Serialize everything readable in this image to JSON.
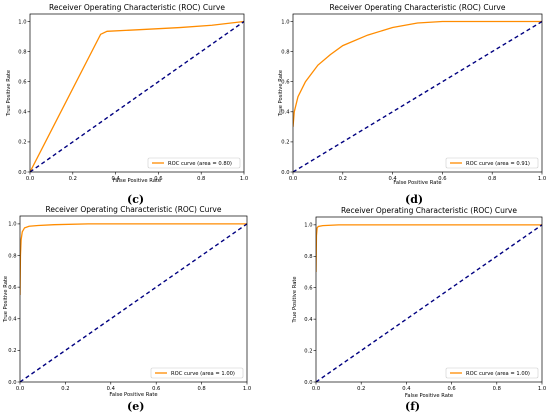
{
  "chart_data": [
    {
      "panel": "c",
      "type": "line",
      "title": "Receiver Operating Characteristic (ROC) Curve",
      "xlabel": "False Positive Rate",
      "ylabel": "True Positive Rate",
      "xlim": [
        0,
        1
      ],
      "ylim": [
        0,
        1.05
      ],
      "xticks": [
        "0.0",
        "0.2",
        "0.4",
        "0.6",
        "0.8",
        "1.0"
      ],
      "yticks": [
        "0.0",
        "0.2",
        "0.4",
        "0.6",
        "0.8",
        "1.0"
      ],
      "legend_position": "lower-right",
      "caption": "(c)",
      "series": [
        {
          "name": "ROC curve (area = 0.80)",
          "color": "#ff8c00",
          "style": "solid",
          "x": [
            0,
            0.33,
            0.36,
            0.5,
            0.7,
            0.85,
            1.0
          ],
          "y": [
            0,
            0.915,
            0.935,
            0.945,
            0.96,
            0.975,
            1.0
          ]
        },
        {
          "name": "",
          "color": "#000080",
          "style": "dashed",
          "x": [
            0,
            1
          ],
          "y": [
            0,
            1
          ]
        }
      ]
    },
    {
      "panel": "d",
      "type": "line",
      "title": "Receiver Operating Characteristic (ROC) Curve",
      "xlabel": "False Positive Rate",
      "ylabel": "True Positive Rate",
      "xlim": [
        0,
        1
      ],
      "ylim": [
        0,
        1.05
      ],
      "xticks": [
        "0.0",
        "0.2",
        "0.4",
        "0.6",
        "0.8",
        "1.0"
      ],
      "yticks": [
        "0.0",
        "0.2",
        "0.4",
        "0.6",
        "0.8",
        "1.0"
      ],
      "legend_position": "lower-right",
      "caption": "(d)",
      "series": [
        {
          "name": "ROC curve (area = 0.91)",
          "color": "#ff8c00",
          "style": "solid",
          "x": [
            0,
            0.005,
            0.02,
            0.05,
            0.1,
            0.15,
            0.2,
            0.3,
            0.4,
            0.5,
            0.6,
            0.7,
            0.8,
            1.0
          ],
          "y": [
            0.3,
            0.4,
            0.5,
            0.6,
            0.71,
            0.78,
            0.84,
            0.91,
            0.96,
            0.99,
            1.0,
            1.0,
            1.0,
            1.0
          ]
        },
        {
          "name": "",
          "color": "#000080",
          "style": "dashed",
          "x": [
            0,
            1
          ],
          "y": [
            0,
            1
          ]
        }
      ]
    },
    {
      "panel": "e",
      "type": "line",
      "title": "Receiver Operating Characteristic (ROC) Curve",
      "xlabel": "False Positive Rate",
      "ylabel": "True Positive Rate",
      "xlim": [
        0,
        1
      ],
      "ylim": [
        0,
        1.05
      ],
      "xticks": [
        "0.0",
        "0.2",
        "0.4",
        "0.6",
        "0.8",
        "1.0"
      ],
      "yticks": [
        "0.0",
        "0.2",
        "0.4",
        "0.6",
        "0.8",
        "1.0"
      ],
      "legend_position": "lower-right",
      "caption": "(e)",
      "series": [
        {
          "name": "ROC curve (area = 1.00)",
          "color": "#ff8c00",
          "style": "solid",
          "x": [
            0,
            0.002,
            0.005,
            0.01,
            0.02,
            0.04,
            0.08,
            0.15,
            0.3,
            1.0
          ],
          "y": [
            0.55,
            0.8,
            0.9,
            0.95,
            0.975,
            0.985,
            0.99,
            0.995,
            1.0,
            1.0
          ]
        },
        {
          "name": "",
          "color": "#000080",
          "style": "dashed",
          "x": [
            0,
            1
          ],
          "y": [
            0,
            1
          ]
        }
      ]
    },
    {
      "panel": "f",
      "type": "line",
      "title": "Receiver Operating Characteristic (ROC) Curve",
      "xlabel": "False Positive Rate",
      "ylabel": "True Positive Rate",
      "xlim": [
        0,
        1
      ],
      "ylim": [
        0,
        1.05
      ],
      "xticks": [
        "0.0",
        "0.2",
        "0.4",
        "0.6",
        "0.8",
        "1.0"
      ],
      "yticks": [
        "0.0",
        "0.2",
        "0.4",
        "0.6",
        "0.8",
        "1.0"
      ],
      "legend_position": "lower-right",
      "caption": "(f)",
      "series": [
        {
          "name": "ROC curve (area = 1.00)",
          "color": "#ff8c00",
          "style": "solid",
          "x": [
            0,
            0.002,
            0.005,
            0.01,
            0.03,
            0.1,
            1.0
          ],
          "y": [
            0.7,
            0.93,
            0.98,
            0.99,
            0.995,
            1.0,
            1.0
          ]
        },
        {
          "name": "",
          "color": "#000080",
          "style": "dashed",
          "x": [
            0,
            1
          ],
          "y": [
            0,
            1
          ]
        }
      ]
    }
  ]
}
